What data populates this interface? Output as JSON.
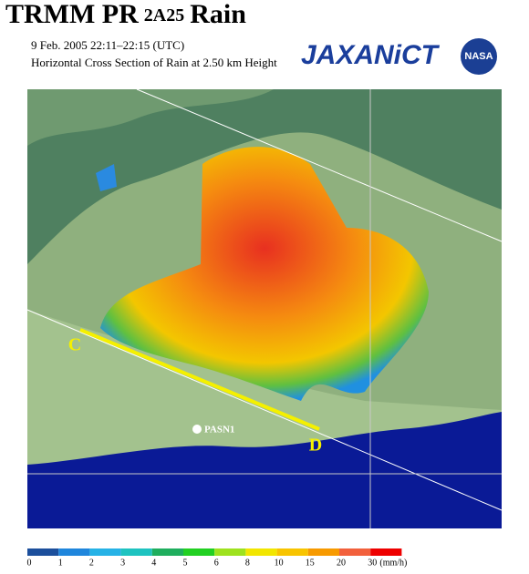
{
  "header": {
    "title": "TRMM PR",
    "product": "2A25",
    "title_tail": "Rain",
    "datetime": "9 Feb. 2005  22:11–22:15 (UTC)",
    "subtitle": "Horizontal Cross Section of Rain at 2.50 km Height",
    "logos": [
      "JAXA",
      "NiCT",
      "NASA"
    ]
  },
  "map": {
    "labels": [
      "C",
      "D",
      "PASN1"
    ]
  },
  "colorbar": {
    "ticks": [
      "0",
      "1",
      "2",
      "3",
      "4",
      "5",
      "6",
      "8",
      "10",
      "15",
      "20",
      "30"
    ],
    "unit": "(mm/h)",
    "colors": [
      "#1c4f9c",
      "#1f86dc",
      "#26b2e6",
      "#1ec3c0",
      "#1fae5e",
      "#22d022",
      "#9ee21e",
      "#f2e600",
      "#f8c400",
      "#f79a00",
      "#f2603c",
      "#ee0000"
    ]
  }
}
